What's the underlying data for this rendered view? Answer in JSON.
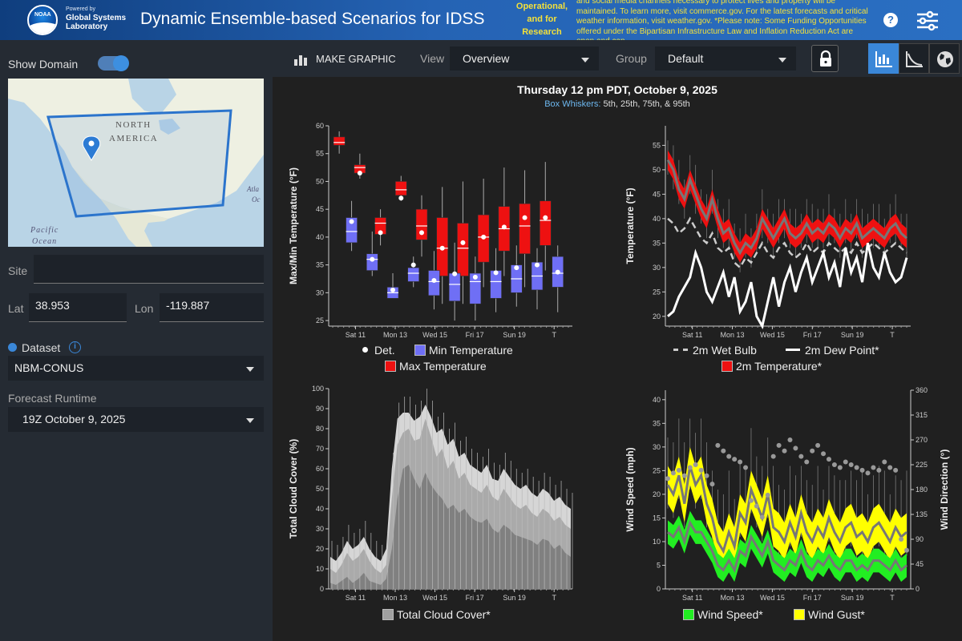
{
  "header": {
    "logo_text": "NOAA",
    "powered_by": "Powered by",
    "lab_name": "Global Systems Laboratory",
    "app_title": "Dynamic Ensemble-based Scenarios for IDSS",
    "banner_lead": "Operational, and for Research",
    "banner_text": "and social media channels necessary to protect lives and property will be maintained. To learn more, visit commerce.gov. For the latest forecasts and critical weather information, visit weather.gov. *Please note: Some Funding Opportunities offered under the Bipartisan Infrastructure Law and Inflation Reduction Act are open and can",
    "help_label": "?"
  },
  "sidebar": {
    "show_domain_label": "Show Domain",
    "map_labels": {
      "north": "NORTH",
      "america": "AMERICA",
      "pacific": "Pacific",
      "ocean": "Ocean",
      "atl": "Atla",
      "oc": "Oc"
    },
    "site_label": "Site",
    "site_value": "",
    "lat_label": "Lat",
    "lat_value": "38.953",
    "lon_label": "Lon",
    "lon_value": "-119.887",
    "dataset_label": "Dataset",
    "dataset_value": "NBM-CONUS",
    "runtime_label": "Forecast Runtime",
    "runtime_value": "19Z October 9, 2025"
  },
  "toolbar": {
    "make_graphic_label": "MAKE GRAPHIC",
    "view_label": "View",
    "view_value": "Overview",
    "group_label": "Group",
    "group_value": "Default"
  },
  "chart_header": {
    "title": "Thursday 12 pm PDT, October 9, 2025",
    "sub_key": "Box Whiskers:",
    "sub_value": "5th, 25th, 75th, & 95th"
  },
  "chart_data": [
    {
      "type": "box",
      "ylabel": "Max/Min Temperature (°F)",
      "ylim": [
        24,
        60
      ],
      "yticks": [
        25,
        30,
        35,
        40,
        45,
        50,
        55,
        60
      ],
      "x_ticks": [
        "Sat 11",
        "Mon 13",
        "Wed 15",
        "Fri 17",
        "Sun 19",
        "T"
      ],
      "colors": {
        "max": "#ee1111",
        "min": "#6f6ff5"
      },
      "legend": [
        "Det.",
        "Min Temperature",
        "Max Temperature"
      ],
      "max_series": [
        {
          "x": 0.2,
          "p5": 55,
          "p25": 56.5,
          "med": 57,
          "p75": 58,
          "p95": 59,
          "det": null
        },
        {
          "x": 1.2,
          "p5": 50.5,
          "p25": 51.5,
          "med": 52.5,
          "p75": 53,
          "p95": 55,
          "det": 51.5
        },
        {
          "x": 2.2,
          "p5": 38.5,
          "p25": 40.5,
          "med": 42.5,
          "p75": 43.5,
          "p95": 45,
          "det": 40.8
        },
        {
          "x": 3.2,
          "p5": 46.5,
          "p25": 47.5,
          "med": 48.5,
          "p75": 50,
          "p95": 51,
          "det": 47
        },
        {
          "x": 4.2,
          "p5": 36.5,
          "p25": 39.5,
          "med": 42,
          "p75": 45,
          "p95": 47.5,
          "det": 40.8
        },
        {
          "x": 5.2,
          "p5": 28,
          "p25": 33,
          "med": 38,
          "p75": 43.5,
          "p95": 49,
          "det": 38
        },
        {
          "x": 6.2,
          "p5": 28,
          "p25": 33,
          "med": 38,
          "p75": 42.5,
          "p95": 50,
          "det": 39
        },
        {
          "x": 7.2,
          "p5": 31,
          "p25": 35.5,
          "med": 40,
          "p75": 44,
          "p95": 50.5,
          "det": 40
        },
        {
          "x": 8.2,
          "p5": 33,
          "p25": 37.5,
          "med": 41.5,
          "p75": 45.5,
          "p95": 52.5,
          "det": 41.8
        },
        {
          "x": 9.2,
          "p5": 31,
          "p25": 37,
          "med": 42,
          "p75": 46,
          "p95": 52,
          "det": 43.5
        },
        {
          "x": 10.2,
          "p5": 34,
          "p25": 38.5,
          "med": 43,
          "p75": 46.5,
          "p95": 53.5,
          "det": 43.5
        }
      ],
      "min_series": [
        {
          "x": 0.8,
          "p5": 37.5,
          "p25": 39,
          "med": 41,
          "p75": 43.5,
          "p95": 46.5,
          "det": 42.8
        },
        {
          "x": 1.8,
          "p5": 33,
          "p25": 34,
          "med": 36,
          "p75": 37,
          "p95": 41,
          "det": 36
        },
        {
          "x": 2.8,
          "p5": 29,
          "p25": 29,
          "med": 30,
          "p75": 31,
          "p95": 33.5,
          "det": 30.5
        },
        {
          "x": 3.8,
          "p5": 31,
          "p25": 32,
          "med": 33.5,
          "p75": 34.5,
          "p95": 36.5,
          "det": 35
        },
        {
          "x": 4.8,
          "p5": 27,
          "p25": 29.5,
          "med": 32,
          "p75": 34,
          "p95": 37.5,
          "det": 32.2
        },
        {
          "x": 5.8,
          "p5": 25,
          "p25": 28.5,
          "med": 31.5,
          "p75": 33.5,
          "p95": 39,
          "det": 33.4
        },
        {
          "x": 6.8,
          "p5": 25,
          "p25": 28,
          "med": 32,
          "p75": 33.5,
          "p95": 36.5,
          "det": 32.8
        },
        {
          "x": 7.8,
          "p5": 26.5,
          "p25": 29,
          "med": 32,
          "p75": 34,
          "p95": 38,
          "det": 33.6
        },
        {
          "x": 8.8,
          "p5": 27.5,
          "p25": 30,
          "med": 32.5,
          "p75": 35,
          "p95": 38.5,
          "det": 34.5
        },
        {
          "x": 9.8,
          "p5": 27,
          "p25": 30.5,
          "med": 33,
          "p75": 35.5,
          "p95": 38,
          "det": 35
        },
        {
          "x": 10.8,
          "p5": 26.5,
          "p25": 31,
          "med": 33.5,
          "p75": 36.5,
          "p95": 38.5,
          "det": 33.7
        }
      ]
    },
    {
      "type": "line",
      "ylabel": "Temperature (°F)",
      "ylim": [
        18,
        59
      ],
      "yticks": [
        20,
        25,
        30,
        35,
        40,
        45,
        50,
        55
      ],
      "x_ticks": [
        "Sat 11",
        "Mon 13",
        "Wed 15",
        "Fri 17",
        "Sun 19",
        "T"
      ],
      "colors": {
        "temp": "#ee1111",
        "dew": "#ffffff",
        "wetbulb": "#cccccc"
      },
      "legend": [
        "2m Wet Bulb",
        "2m Dew Point*",
        "2m Temperature*"
      ],
      "temp_median": [
        52,
        50,
        46,
        44,
        48,
        45,
        42,
        40,
        44,
        40,
        37,
        38,
        35,
        33,
        35,
        34,
        36,
        40,
        38,
        36,
        38,
        40,
        37,
        36,
        37,
        39,
        37,
        38,
        37,
        39,
        38,
        36,
        38,
        37,
        39,
        36,
        37,
        38,
        37,
        36,
        38,
        39,
        37,
        36
      ],
      "dew_point": [
        20,
        21,
        24,
        26,
        28,
        33,
        30,
        25,
        23,
        26,
        29,
        24,
        28,
        21,
        23,
        27,
        20,
        18,
        23,
        28,
        22,
        27,
        30,
        25,
        29,
        32,
        27,
        30,
        33,
        28,
        31,
        26,
        34,
        29,
        32,
        27,
        35,
        30,
        28,
        33,
        29,
        27,
        28,
        32
      ],
      "wet_bulb": [
        40,
        39,
        37,
        38,
        40,
        38,
        36,
        35,
        37,
        34,
        33,
        34,
        31,
        30,
        32,
        31,
        33,
        35,
        33,
        32,
        34,
        35,
        33,
        32,
        33,
        35,
        33,
        34,
        33,
        35,
        34,
        33,
        34,
        33,
        35,
        33,
        34,
        35,
        34,
        33,
        34,
        35,
        34,
        33
      ]
    },
    {
      "type": "area",
      "ylabel": "Total Cloud Cover (%)",
      "ylim": [
        0,
        100
      ],
      "yticks": [
        0,
        10,
        20,
        30,
        40,
        50,
        60,
        70,
        80,
        90,
        100
      ],
      "x_ticks": [
        "Sat 11",
        "Mon 13",
        "Wed 15",
        "Fri 17",
        "Sun 19",
        "T"
      ],
      "legend": [
        "Total Cloud Cover*"
      ],
      "p25": [
        3,
        2,
        4,
        6,
        3,
        5,
        8,
        4,
        3,
        2,
        5,
        20,
        45,
        60,
        62,
        55,
        50,
        58,
        52,
        48,
        45,
        40,
        42,
        38,
        40,
        36,
        34,
        33,
        35,
        30,
        28,
        32,
        30,
        27,
        26,
        25,
        24,
        22,
        25,
        24,
        20,
        22,
        18,
        16
      ],
      "p75": [
        10,
        8,
        12,
        18,
        14,
        16,
        20,
        14,
        10,
        8,
        12,
        45,
        72,
        78,
        80,
        74,
        75,
        85,
        76,
        66,
        70,
        60,
        64,
        55,
        58,
        52,
        50,
        48,
        52,
        46,
        44,
        50,
        46,
        42,
        40,
        42,
        38,
        36,
        40,
        38,
        34,
        36,
        32,
        30
      ],
      "p95": [
        16,
        14,
        18,
        24,
        20,
        22,
        26,
        20,
        16,
        14,
        20,
        60,
        85,
        88,
        88,
        84,
        86,
        92,
        86,
        78,
        80,
        72,
        75,
        66,
        68,
        62,
        60,
        58,
        62,
        55,
        54,
        60,
        56,
        52,
        50,
        52,
        48,
        46,
        50,
        48,
        44,
        46,
        42,
        40
      ]
    },
    {
      "type": "line",
      "ylabel": "Wind Speed (mph)",
      "y2label": "Wind Direction (°)",
      "ylim": [
        0,
        42
      ],
      "yticks": [
        0,
        5,
        10,
        15,
        20,
        25,
        30,
        35,
        40
      ],
      "y2ticks": [
        0,
        45,
        90,
        135,
        180,
        225,
        270,
        315,
        360
      ],
      "x_ticks": [
        "Sat 11",
        "Mon 13",
        "Wed 15",
        "Fri 17",
        "Sun 19",
        "T"
      ],
      "colors": {
        "speed": "#22ee22",
        "gust": "#ffff00"
      },
      "legend": [
        "Wind Speed*",
        "Wind Gust*"
      ],
      "gust_median": [
        22,
        20,
        24,
        18,
        26,
        22,
        24,
        18,
        15,
        10,
        8,
        12,
        9,
        16,
        14,
        21,
        18,
        15,
        20,
        13,
        12,
        10,
        14,
        11,
        16,
        12,
        10,
        13,
        11,
        15,
        12,
        10,
        13,
        14,
        11,
        12,
        10,
        13,
        14,
        12,
        10,
        13,
        11,
        12
      ],
      "speed_median": [
        12,
        11,
        13,
        10,
        14,
        12,
        12,
        10,
        8,
        5,
        4,
        6,
        4,
        8,
        7,
        11,
        9,
        7,
        10,
        6,
        5,
        4,
        6,
        5,
        8,
        5,
        4,
        6,
        5,
        7,
        5,
        4,
        6,
        6,
        4,
        5,
        4,
        6,
        6,
        5,
        4,
        6,
        4,
        5
      ],
      "direction": [
        200,
        210,
        215,
        205,
        220,
        225,
        215,
        205,
        190,
        260,
        250,
        240,
        235,
        230,
        220,
        160,
        150,
        130,
        170,
        240,
        260,
        250,
        270,
        255,
        240,
        230,
        250,
        260,
        245,
        235,
        225,
        220,
        230,
        225,
        220,
        215,
        210,
        220,
        215,
        230,
        220,
        215,
        90,
        70
      ]
    }
  ]
}
